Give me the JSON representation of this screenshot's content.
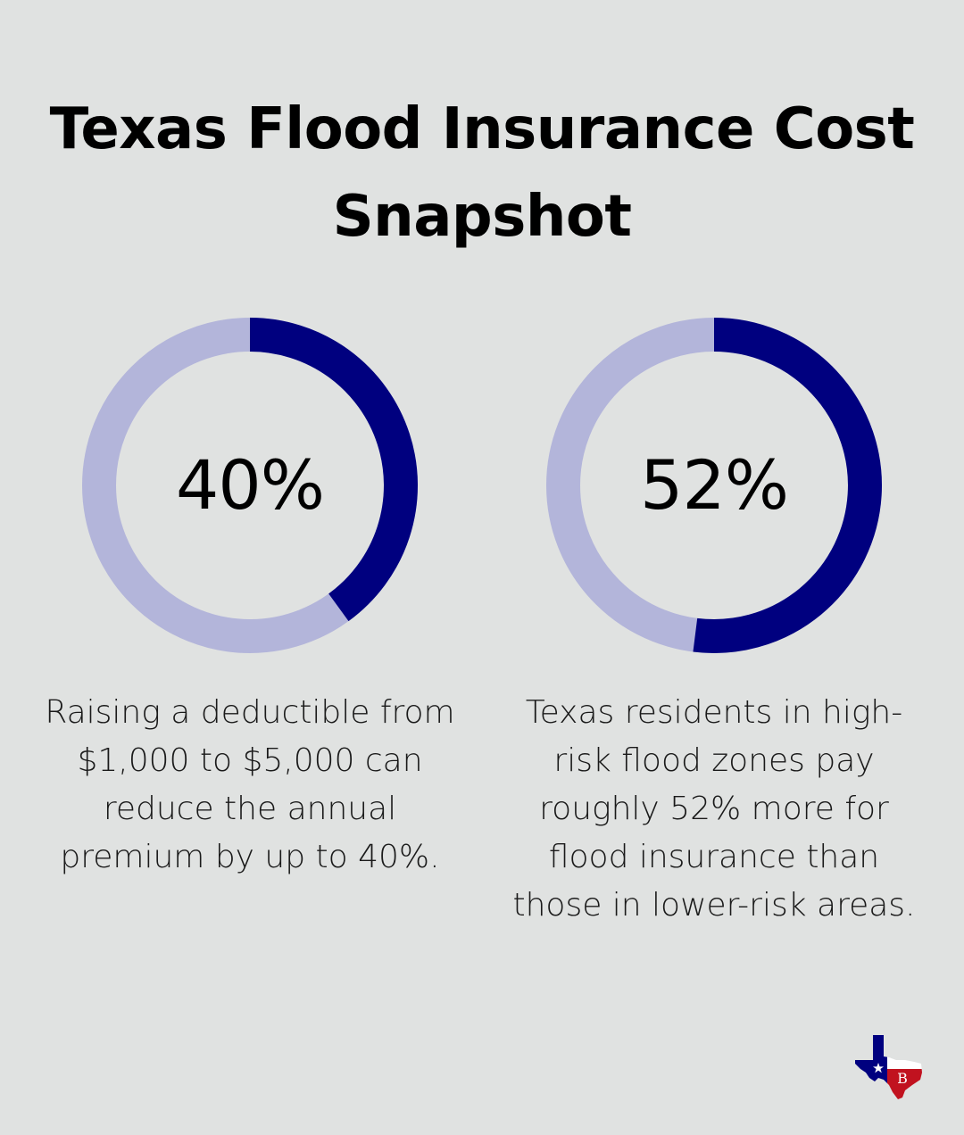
{
  "title": "Texas Flood Insurance Cost Snapshot",
  "colors": {
    "background": "#e0e2e1",
    "ring_track": "#b3b5da",
    "ring_fill": "#00007f",
    "text": "#000000"
  },
  "chart_data": [
    {
      "type": "pie",
      "variant": "donut",
      "value": 40,
      "max": 100,
      "label": "40%",
      "description": "Raising a deductible from $1,000 to $5,000 can reduce the annual premium by up to 40%."
    },
    {
      "type": "pie",
      "variant": "donut",
      "value": 52,
      "max": 100,
      "label": "52%",
      "description": "Texas residents in high-risk flood zones pay roughly 52% more for flood insurance than those in lower-risk areas."
    }
  ],
  "logo": {
    "icon": "texas-flag-map-icon",
    "monogram": "B"
  }
}
